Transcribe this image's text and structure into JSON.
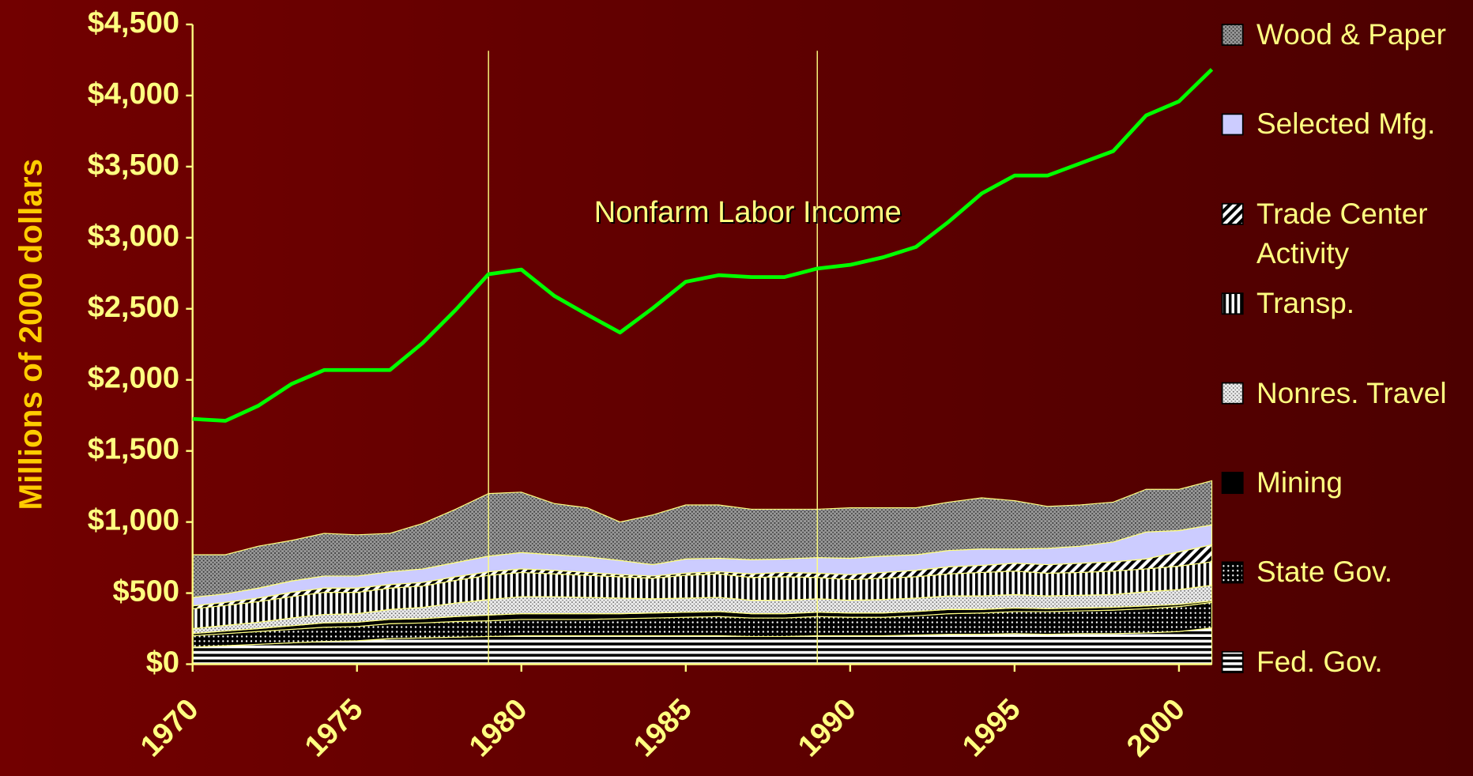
{
  "chart_data": {
    "type": "area",
    "stacked": true,
    "y_label": "Millions of 2000 dollars",
    "x": [
      1970,
      1971,
      1972,
      1973,
      1974,
      1975,
      1976,
      1977,
      1978,
      1979,
      1980,
      1981,
      1982,
      1983,
      1984,
      1985,
      1986,
      1987,
      1988,
      1989,
      1990,
      1991,
      1992,
      1993,
      1994,
      1995,
      1996,
      1997,
      1998,
      1999,
      2000,
      2001
    ],
    "xlim": [
      1970,
      2001
    ],
    "xticks": [
      1970,
      1975,
      1980,
      1985,
      1990,
      1995,
      2000
    ],
    "ylim": [
      0,
      4500
    ],
    "yticks": [
      {
        "value": 0,
        "label": "$0"
      },
      {
        "value": 500,
        "label": "$500"
      },
      {
        "value": 1000,
        "label": "$1,000"
      },
      {
        "value": 1500,
        "label": "$1,500"
      },
      {
        "value": 2000,
        "label": "$2,000"
      },
      {
        "value": 2500,
        "label": "$2,500"
      },
      {
        "value": 3000,
        "label": "$3,000"
      },
      {
        "value": 3500,
        "label": "$3,500"
      },
      {
        "value": 4000,
        "label": "$4,000"
      },
      {
        "value": 4500,
        "label": "$4,500"
      }
    ],
    "vlines": [
      1979,
      1989
    ],
    "series": [
      {
        "name": "Fed. Gov.",
        "pattern": "hstripes",
        "values": [
          120,
          130,
          140,
          150,
          160,
          165,
          180,
          185,
          190,
          195,
          200,
          200,
          200,
          200,
          200,
          200,
          200,
          195,
          195,
          200,
          200,
          200,
          205,
          210,
          210,
          215,
          210,
          215,
          215,
          220,
          230,
          255
        ]
      },
      {
        "name": "State Gov.",
        "pattern": "blackdots",
        "values": [
          80,
          85,
          90,
          95,
          100,
          100,
          105,
          105,
          110,
          110,
          115,
          115,
          115,
          120,
          125,
          130,
          135,
          130,
          130,
          135,
          130,
          130,
          135,
          145,
          150,
          155,
          160,
          160,
          165,
          170,
          175,
          180
        ]
      },
      {
        "name": "Mining",
        "pattern": "solidblack",
        "values": [
          15,
          18,
          20,
          25,
          30,
          30,
          30,
          30,
          35,
          40,
          40,
          40,
          40,
          35,
          35,
          35,
          35,
          30,
          30,
          30,
          30,
          30,
          30,
          30,
          25,
          25,
          20,
          20,
          20,
          20,
          15,
          10
        ]
      },
      {
        "name": "Nonres. Travel",
        "pattern": "travel",
        "values": [
          35,
          40,
          45,
          55,
          60,
          60,
          70,
          80,
          95,
          110,
          120,
          120,
          115,
          110,
          100,
          100,
          100,
          95,
          95,
          95,
          90,
          95,
          95,
          95,
          95,
          95,
          90,
          90,
          90,
          100,
          105,
          110
        ]
      },
      {
        "name": "Transp.",
        "pattern": "vstripes",
        "values": [
          140,
          140,
          145,
          150,
          155,
          150,
          150,
          150,
          160,
          170,
          170,
          160,
          155,
          150,
          145,
          160,
          165,
          160,
          165,
          150,
          145,
          150,
          150,
          155,
          165,
          165,
          160,
          160,
          165,
          160,
          165,
          165
        ]
      },
      {
        "name": "Trade Center Activity",
        "pattern": "diag",
        "values": [
          20,
          22,
          25,
          30,
          30,
          30,
          25,
          25,
          25,
          25,
          25,
          25,
          20,
          15,
          15,
          15,
          15,
          25,
          30,
          30,
          35,
          40,
          45,
          50,
          50,
          55,
          60,
          65,
          65,
          70,
          100,
          120
        ]
      },
      {
        "name": "Selected Mfg.",
        "pattern": "mfg",
        "values": [
          60,
          60,
          70,
          80,
          85,
          85,
          90,
          95,
          100,
          110,
          115,
          110,
          110,
          100,
          80,
          100,
          95,
          100,
          95,
          110,
          115,
          115,
          110,
          115,
          115,
          100,
          115,
          120,
          140,
          190,
          150,
          140
        ]
      },
      {
        "name": "Wood & Paper",
        "pattern": "wood",
        "values": [
          300,
          275,
          295,
          285,
          300,
          290,
          270,
          320,
          375,
          440,
          425,
          360,
          345,
          270,
          350,
          380,
          375,
          355,
          350,
          340,
          355,
          340,
          330,
          340,
          360,
          340,
          295,
          290,
          280,
          300,
          290,
          310
        ]
      }
    ],
    "line": {
      "name": "Nonfarm Labor Income",
      "color": "#00ff00",
      "values": [
        1725,
        1712,
        1818,
        1970,
        2069,
        2069,
        2069,
        2260,
        2492,
        2743,
        2776,
        2591,
        2459,
        2333,
        2505,
        2690,
        2736,
        2723,
        2723,
        2783,
        2809,
        2862,
        2935,
        3113,
        3311,
        3437,
        3437,
        3523,
        3609,
        3860,
        3959,
        4184
      ]
    }
  }
}
